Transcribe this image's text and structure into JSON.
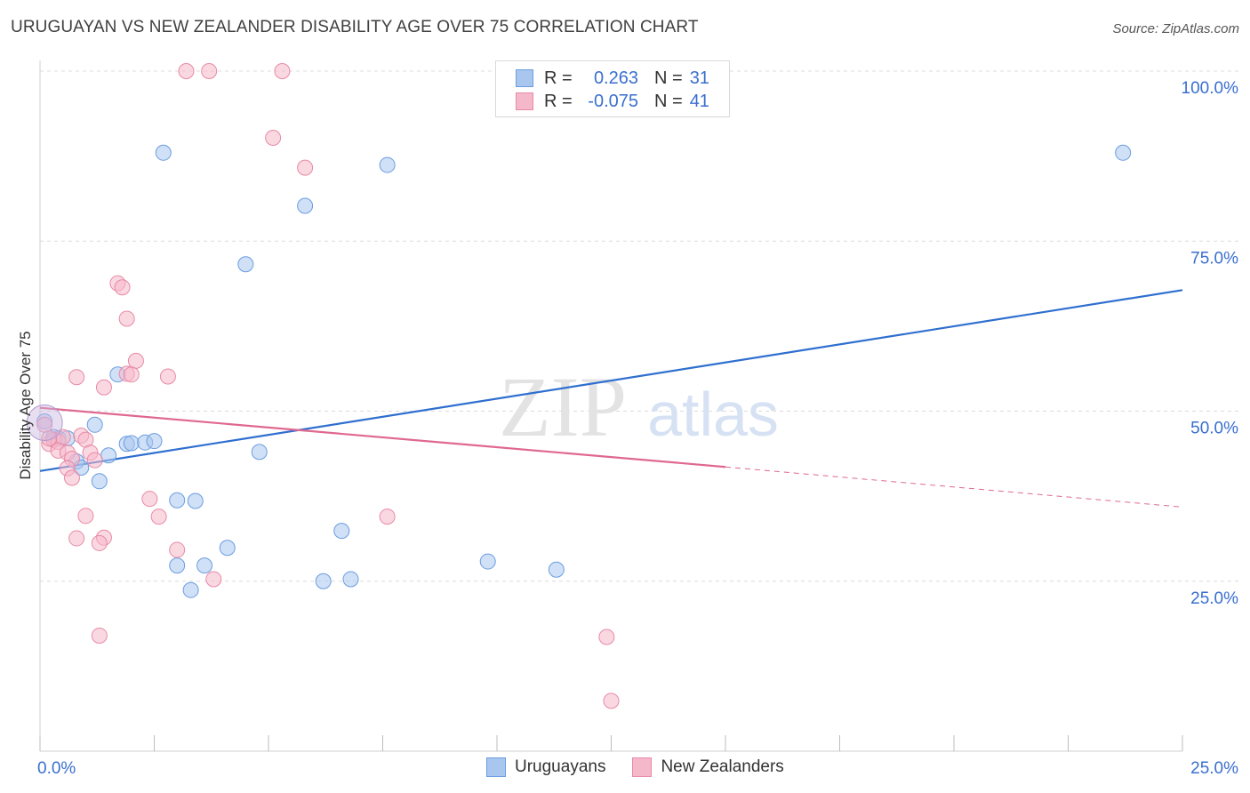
{
  "header": {
    "title": "URUGUAYAN VS NEW ZEALANDER DISABILITY AGE OVER 75 CORRELATION CHART",
    "source": "Source: ZipAtlas.com"
  },
  "watermark": {
    "zip": "ZIP",
    "atlas": "atlas"
  },
  "legend": {
    "rows": [
      {
        "r_label": "R =",
        "r_value": "0.263",
        "n_label": "N =",
        "n_value": "31",
        "color": "#a9c6ef",
        "border": "#6b9de0"
      },
      {
        "r_label": "R =",
        "r_value": "-0.075",
        "n_label": "N =",
        "n_value": "41",
        "color": "#f5b8cb",
        "border": "#e88aa6"
      }
    ]
  },
  "bottom_legend": [
    {
      "label": "Uruguayans",
      "color": "#a9c6ef",
      "border": "#6b9de0"
    },
    {
      "label": "New Zealanders",
      "color": "#f5b8cb",
      "border": "#e88aa6"
    }
  ],
  "chart_data": {
    "type": "scatter",
    "title": "URUGUAYAN VS NEW ZEALANDER DISABILITY AGE OVER 75 CORRELATION CHART",
    "xlabel": "",
    "ylabel": "Disability Age Over 75",
    "xlim": [
      0,
      25
    ],
    "ylim": [
      0,
      102
    ],
    "x_tick_labels": [
      {
        "value": 0,
        "label": "0.0%"
      },
      {
        "value": 25,
        "label": "25.0%"
      }
    ],
    "y_tick_labels": [
      {
        "value": 25,
        "label": "25.0%"
      },
      {
        "value": 50,
        "label": "50.0%"
      },
      {
        "value": 75,
        "label": "75.0%"
      },
      {
        "value": 100,
        "label": "100.0%"
      }
    ],
    "series": [
      {
        "name": "Uruguayans",
        "color": "#a9c6ef",
        "stroke": "#6b9de0",
        "trend_color": "#2f6fd0",
        "trend": {
          "x": [
            0,
            25
          ],
          "y": [
            41.2,
            67.8
          ]
        },
        "points": [
          {
            "x": 2.7,
            "y": 88.0
          },
          {
            "x": 7.6,
            "y": 86.2
          },
          {
            "x": 23.7,
            "y": 88.0
          },
          {
            "x": 5.8,
            "y": 80.2
          },
          {
            "x": 4.5,
            "y": 71.6
          },
          {
            "x": 1.7,
            "y": 55.4
          },
          {
            "x": 1.2,
            "y": 48.0
          },
          {
            "x": 0.4,
            "y": 46.0
          },
          {
            "x": 0.6,
            "y": 46.0
          },
          {
            "x": 0.3,
            "y": 46.2
          },
          {
            "x": 1.9,
            "y": 45.2
          },
          {
            "x": 2.0,
            "y": 45.3
          },
          {
            "x": 2.3,
            "y": 45.4
          },
          {
            "x": 2.5,
            "y": 45.6
          },
          {
            "x": 0.8,
            "y": 42.6
          },
          {
            "x": 0.9,
            "y": 41.7
          },
          {
            "x": 1.5,
            "y": 43.5
          },
          {
            "x": 4.8,
            "y": 44.0
          },
          {
            "x": 1.3,
            "y": 39.7
          },
          {
            "x": 3.0,
            "y": 36.9
          },
          {
            "x": 3.4,
            "y": 36.8
          },
          {
            "x": 6.6,
            "y": 32.4
          },
          {
            "x": 4.1,
            "y": 29.9
          },
          {
            "x": 3.0,
            "y": 27.3
          },
          {
            "x": 3.6,
            "y": 27.3
          },
          {
            "x": 9.8,
            "y": 27.9
          },
          {
            "x": 11.3,
            "y": 26.7
          },
          {
            "x": 6.2,
            "y": 25.0
          },
          {
            "x": 6.8,
            "y": 25.3
          },
          {
            "x": 3.3,
            "y": 23.7
          },
          {
            "x": 0.1,
            "y": 48.5
          }
        ]
      },
      {
        "name": "New Zealanders",
        "color": "#f5b8cb",
        "stroke": "#e88aa6",
        "trend_color": "#e0688f",
        "trend": {
          "x": [
            0,
            15.0
          ],
          "y": [
            50.5,
            41.8
          ]
        },
        "trend_dashed": {
          "x": [
            15.0,
            25
          ],
          "y": [
            41.8,
            35.9
          ]
        },
        "points": [
          {
            "x": 3.2,
            "y": 100.0
          },
          {
            "x": 3.7,
            "y": 100.0
          },
          {
            "x": 5.3,
            "y": 100.0
          },
          {
            "x": 5.1,
            "y": 90.2
          },
          {
            "x": 5.8,
            "y": 85.8
          },
          {
            "x": 1.7,
            "y": 68.8
          },
          {
            "x": 1.8,
            "y": 68.2
          },
          {
            "x": 1.9,
            "y": 63.6
          },
          {
            "x": 2.1,
            "y": 57.4
          },
          {
            "x": 1.9,
            "y": 55.5
          },
          {
            "x": 2.0,
            "y": 55.4
          },
          {
            "x": 0.8,
            "y": 55.0
          },
          {
            "x": 2.8,
            "y": 55.1
          },
          {
            "x": 1.4,
            "y": 53.5
          },
          {
            "x": 0.1,
            "y": 48.0
          },
          {
            "x": 0.2,
            "y": 45.2
          },
          {
            "x": 0.3,
            "y": 45.8
          },
          {
            "x": 0.4,
            "y": 45.5
          },
          {
            "x": 0.5,
            "y": 46.2
          },
          {
            "x": 0.9,
            "y": 46.4
          },
          {
            "x": 1.0,
            "y": 45.8
          },
          {
            "x": 0.4,
            "y": 44.2
          },
          {
            "x": 0.6,
            "y": 43.9
          },
          {
            "x": 1.1,
            "y": 43.9
          },
          {
            "x": 0.7,
            "y": 43.0
          },
          {
            "x": 1.2,
            "y": 42.8
          },
          {
            "x": 0.6,
            "y": 41.6
          },
          {
            "x": 0.7,
            "y": 40.2
          },
          {
            "x": 2.4,
            "y": 37.1
          },
          {
            "x": 2.6,
            "y": 34.5
          },
          {
            "x": 1.0,
            "y": 34.6
          },
          {
            "x": 7.6,
            "y": 34.5
          },
          {
            "x": 0.8,
            "y": 31.3
          },
          {
            "x": 1.4,
            "y": 31.4
          },
          {
            "x": 1.3,
            "y": 30.6
          },
          {
            "x": 3.0,
            "y": 29.6
          },
          {
            "x": 3.8,
            "y": 25.3
          },
          {
            "x": 1.3,
            "y": 17.0
          },
          {
            "x": 12.4,
            "y": 16.8
          },
          {
            "x": 12.5,
            "y": 7.4
          },
          {
            "x": 0.2,
            "y": 46.0
          }
        ]
      }
    ]
  }
}
